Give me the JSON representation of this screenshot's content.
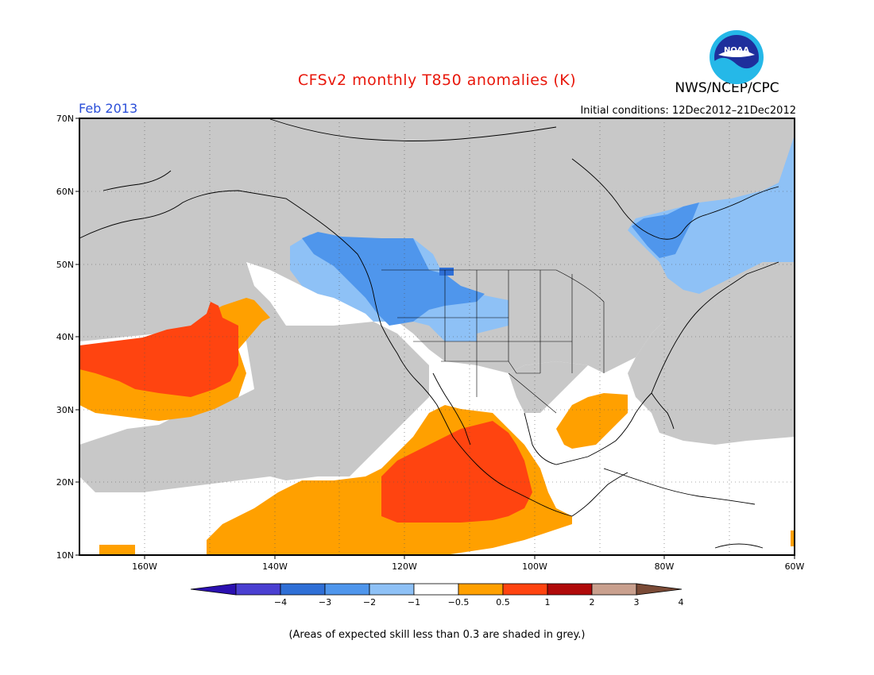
{
  "header": {
    "title": "CFSv2 monthly T850 anomalies (K)",
    "month": "Feb 2013",
    "initial_conditions": "Initial conditions: 12Dec2012–21Dec2012",
    "agency": "NWS/NCEP/CPC",
    "logo_text": "NOAA"
  },
  "map": {
    "lat_labels": [
      "70N",
      "60N",
      "50N",
      "40N",
      "30N",
      "20N",
      "10N"
    ],
    "lon_labels": [
      "160W",
      "140W",
      "120W",
      "100W",
      "80W",
      "60W"
    ],
    "lon_range": [
      -170,
      -60
    ],
    "lat_range": [
      10,
      70
    ]
  },
  "colorbar": {
    "tick_labels": [
      "−4",
      "−3",
      "−2",
      "−1",
      "−0.5",
      "0.5",
      "1",
      "2",
      "3",
      "4"
    ],
    "colors": [
      "#2b10b0",
      "#4a3fd1",
      "#2f6fd6",
      "#4f96ec",
      "#8ec1f6",
      "#ffffff",
      "#ffa000",
      "#ff4410",
      "#b00a0a",
      "#c9a08e",
      "#7a4a36"
    ]
  },
  "footnote": "(Areas of expected skill less than 0.3 are shaded in grey.)"
}
